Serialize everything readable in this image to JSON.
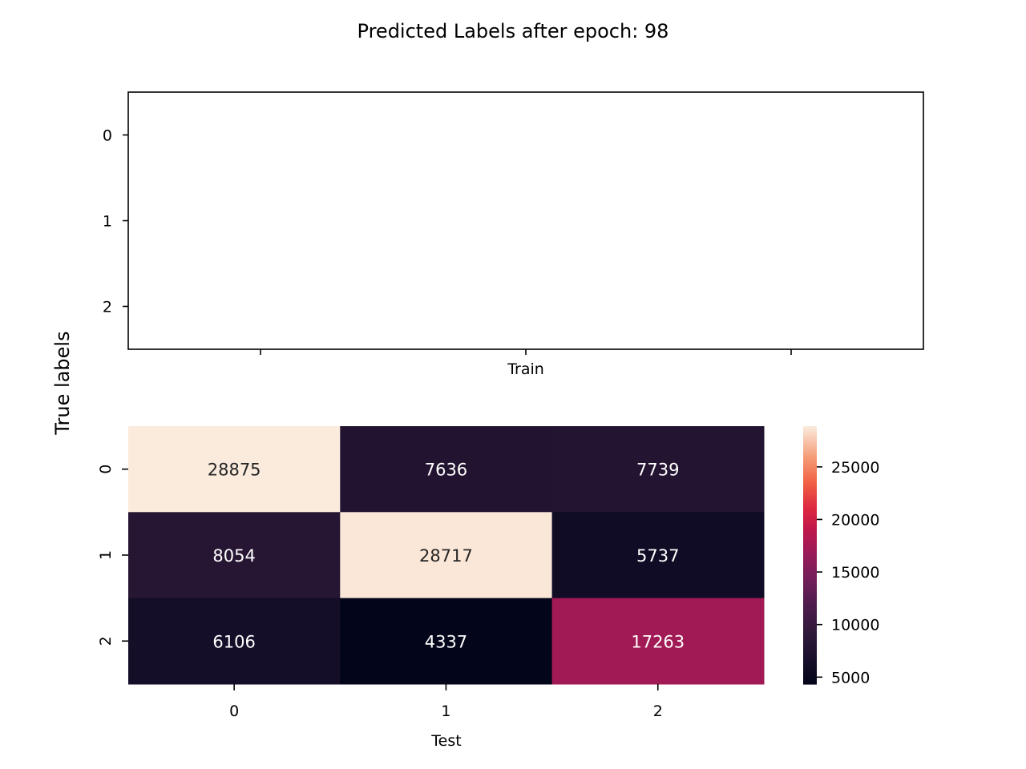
{
  "title": "Predicted Labels after epoch: 98",
  "shared_ylabel": "True labels",
  "chart_data": [
    {
      "type": "heatmap",
      "name": "train",
      "xlabel": "Train",
      "row_labels": [
        "0",
        "1",
        "2"
      ],
      "col_labels": [],
      "values": [],
      "grid": false
    },
    {
      "type": "heatmap",
      "name": "test",
      "xlabel": "Test",
      "row_labels": [
        "0",
        "1",
        "2"
      ],
      "col_labels": [
        "0",
        "1",
        "2"
      ],
      "values": [
        [
          28875,
          7636,
          7739
        ],
        [
          8054,
          28717,
          5737
        ],
        [
          6106,
          4337,
          17263
        ]
      ],
      "colorbar": {
        "range": [
          4337,
          28875
        ],
        "ticks": [
          5000,
          10000,
          15000,
          20000,
          25000
        ],
        "colormap": "rocket"
      },
      "grid": false
    }
  ]
}
